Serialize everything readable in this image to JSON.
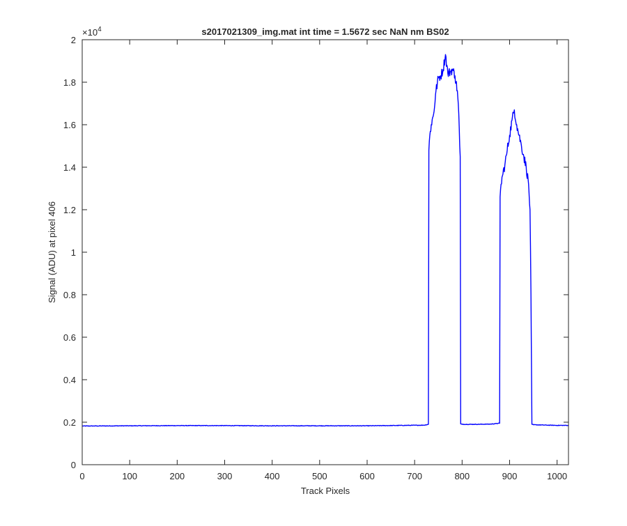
{
  "chart_data": {
    "type": "line",
    "title": "s2017021309_img.mat int time = 1.5672 sec  NaN nm BS02",
    "xlabel": "Track Pixels",
    "ylabel": "Signal (ADU) at pixel 406",
    "xlim": [
      0,
      1024
    ],
    "ylim": [
      0,
      20000
    ],
    "y_exponent_label": "×10",
    "y_exponent_power": "4",
    "grid": false,
    "x_ticks": [
      0,
      100,
      200,
      300,
      400,
      500,
      600,
      700,
      800,
      900,
      1000
    ],
    "x_tick_labels": [
      "0",
      "100",
      "200",
      "300",
      "400",
      "500",
      "600",
      "700",
      "800",
      "900",
      "1000"
    ],
    "y_ticks": [
      0,
      2000,
      4000,
      6000,
      8000,
      10000,
      12000,
      14000,
      16000,
      18000,
      20000
    ],
    "y_tick_labels": [
      "0",
      "0.2",
      "0.4",
      "0.6",
      "0.8",
      "1",
      "1.2",
      "1.4",
      "1.6",
      "1.8",
      "2"
    ],
    "series": [
      {
        "color": "#0000ff",
        "x": [
          0,
          100,
          200,
          300,
          400,
          500,
          600,
          720,
          729,
          730,
          732,
          735,
          740,
          745,
          750,
          755,
          760,
          765,
          770,
          775,
          780,
          785,
          790,
          793,
          795,
          796,
          797,
          800,
          830,
          860,
          879,
          880,
          882,
          885,
          890,
          895,
          900,
          905,
          910,
          915,
          920,
          925,
          930,
          935,
          940,
          943,
          945,
          947,
          950,
          980,
          1000,
          1024
        ],
        "y": [
          1820,
          1830,
          1840,
          1840,
          1830,
          1830,
          1830,
          1860,
          1900,
          14800,
          15500,
          16000,
          16500,
          17600,
          18200,
          18300,
          18600,
          19300,
          18400,
          18500,
          18600,
          18300,
          17600,
          16500,
          15000,
          14500,
          1920,
          1900,
          1900,
          1910,
          1950,
          12600,
          13200,
          13600,
          14100,
          14800,
          15500,
          16200,
          16700,
          16000,
          15500,
          15000,
          14500,
          14000,
          13200,
          12000,
          8000,
          1900,
          1880,
          1860,
          1850,
          1850
        ]
      }
    ]
  }
}
